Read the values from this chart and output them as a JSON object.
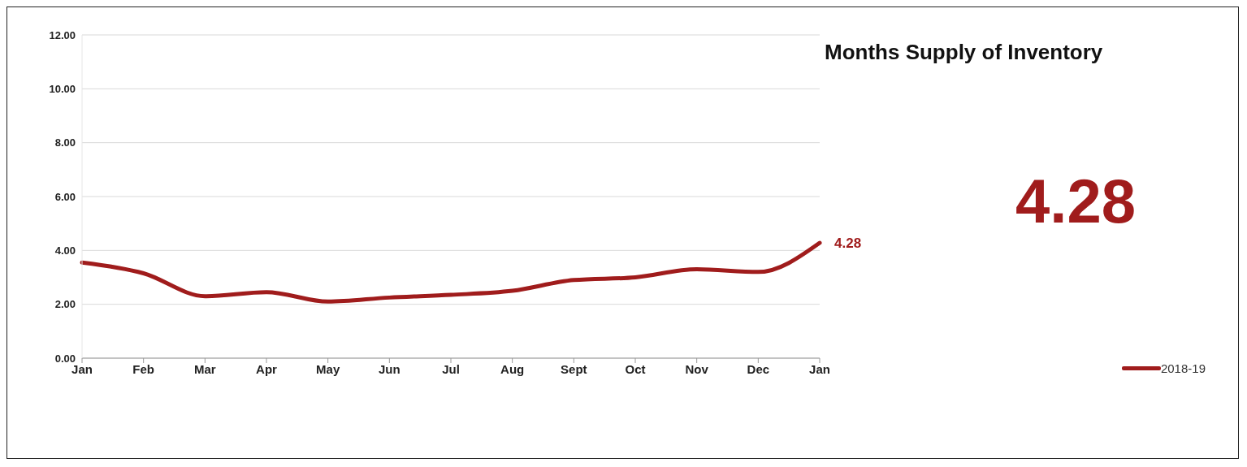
{
  "chart_data": {
    "type": "line",
    "title": "Months Supply of Inventory",
    "categories": [
      "Jan",
      "Feb",
      "Mar",
      "Apr",
      "May",
      "Jun",
      "Jul",
      "Aug",
      "Sept",
      "Oct",
      "Nov",
      "Dec",
      "Jan"
    ],
    "series": [
      {
        "name": "2018-19",
        "color": "#a01c1c",
        "values": [
          3.55,
          3.15,
          2.3,
          2.45,
          2.1,
          2.25,
          2.35,
          2.5,
          2.9,
          3.0,
          3.3,
          3.2,
          4.28
        ],
        "value_labels": [
          null,
          null,
          null,
          null,
          null,
          null,
          null,
          null,
          null,
          null,
          null,
          null,
          "4.28"
        ]
      }
    ],
    "ylim": [
      0,
      12
    ],
    "yticks": [
      {
        "value": 0,
        "label": "0.00"
      },
      {
        "value": 2,
        "label": "2.00"
      },
      {
        "value": 4,
        "label": "4.00"
      },
      {
        "value": 6,
        "label": "6.00"
      },
      {
        "value": 8,
        "label": "8.00"
      },
      {
        "value": 10,
        "label": "10.00"
      },
      {
        "value": 12,
        "label": "12.00"
      }
    ],
    "annotations": [
      "4.28"
    ],
    "grid": "y",
    "legend": "bottom right",
    "marker": "none",
    "line_style": "solid"
  }
}
